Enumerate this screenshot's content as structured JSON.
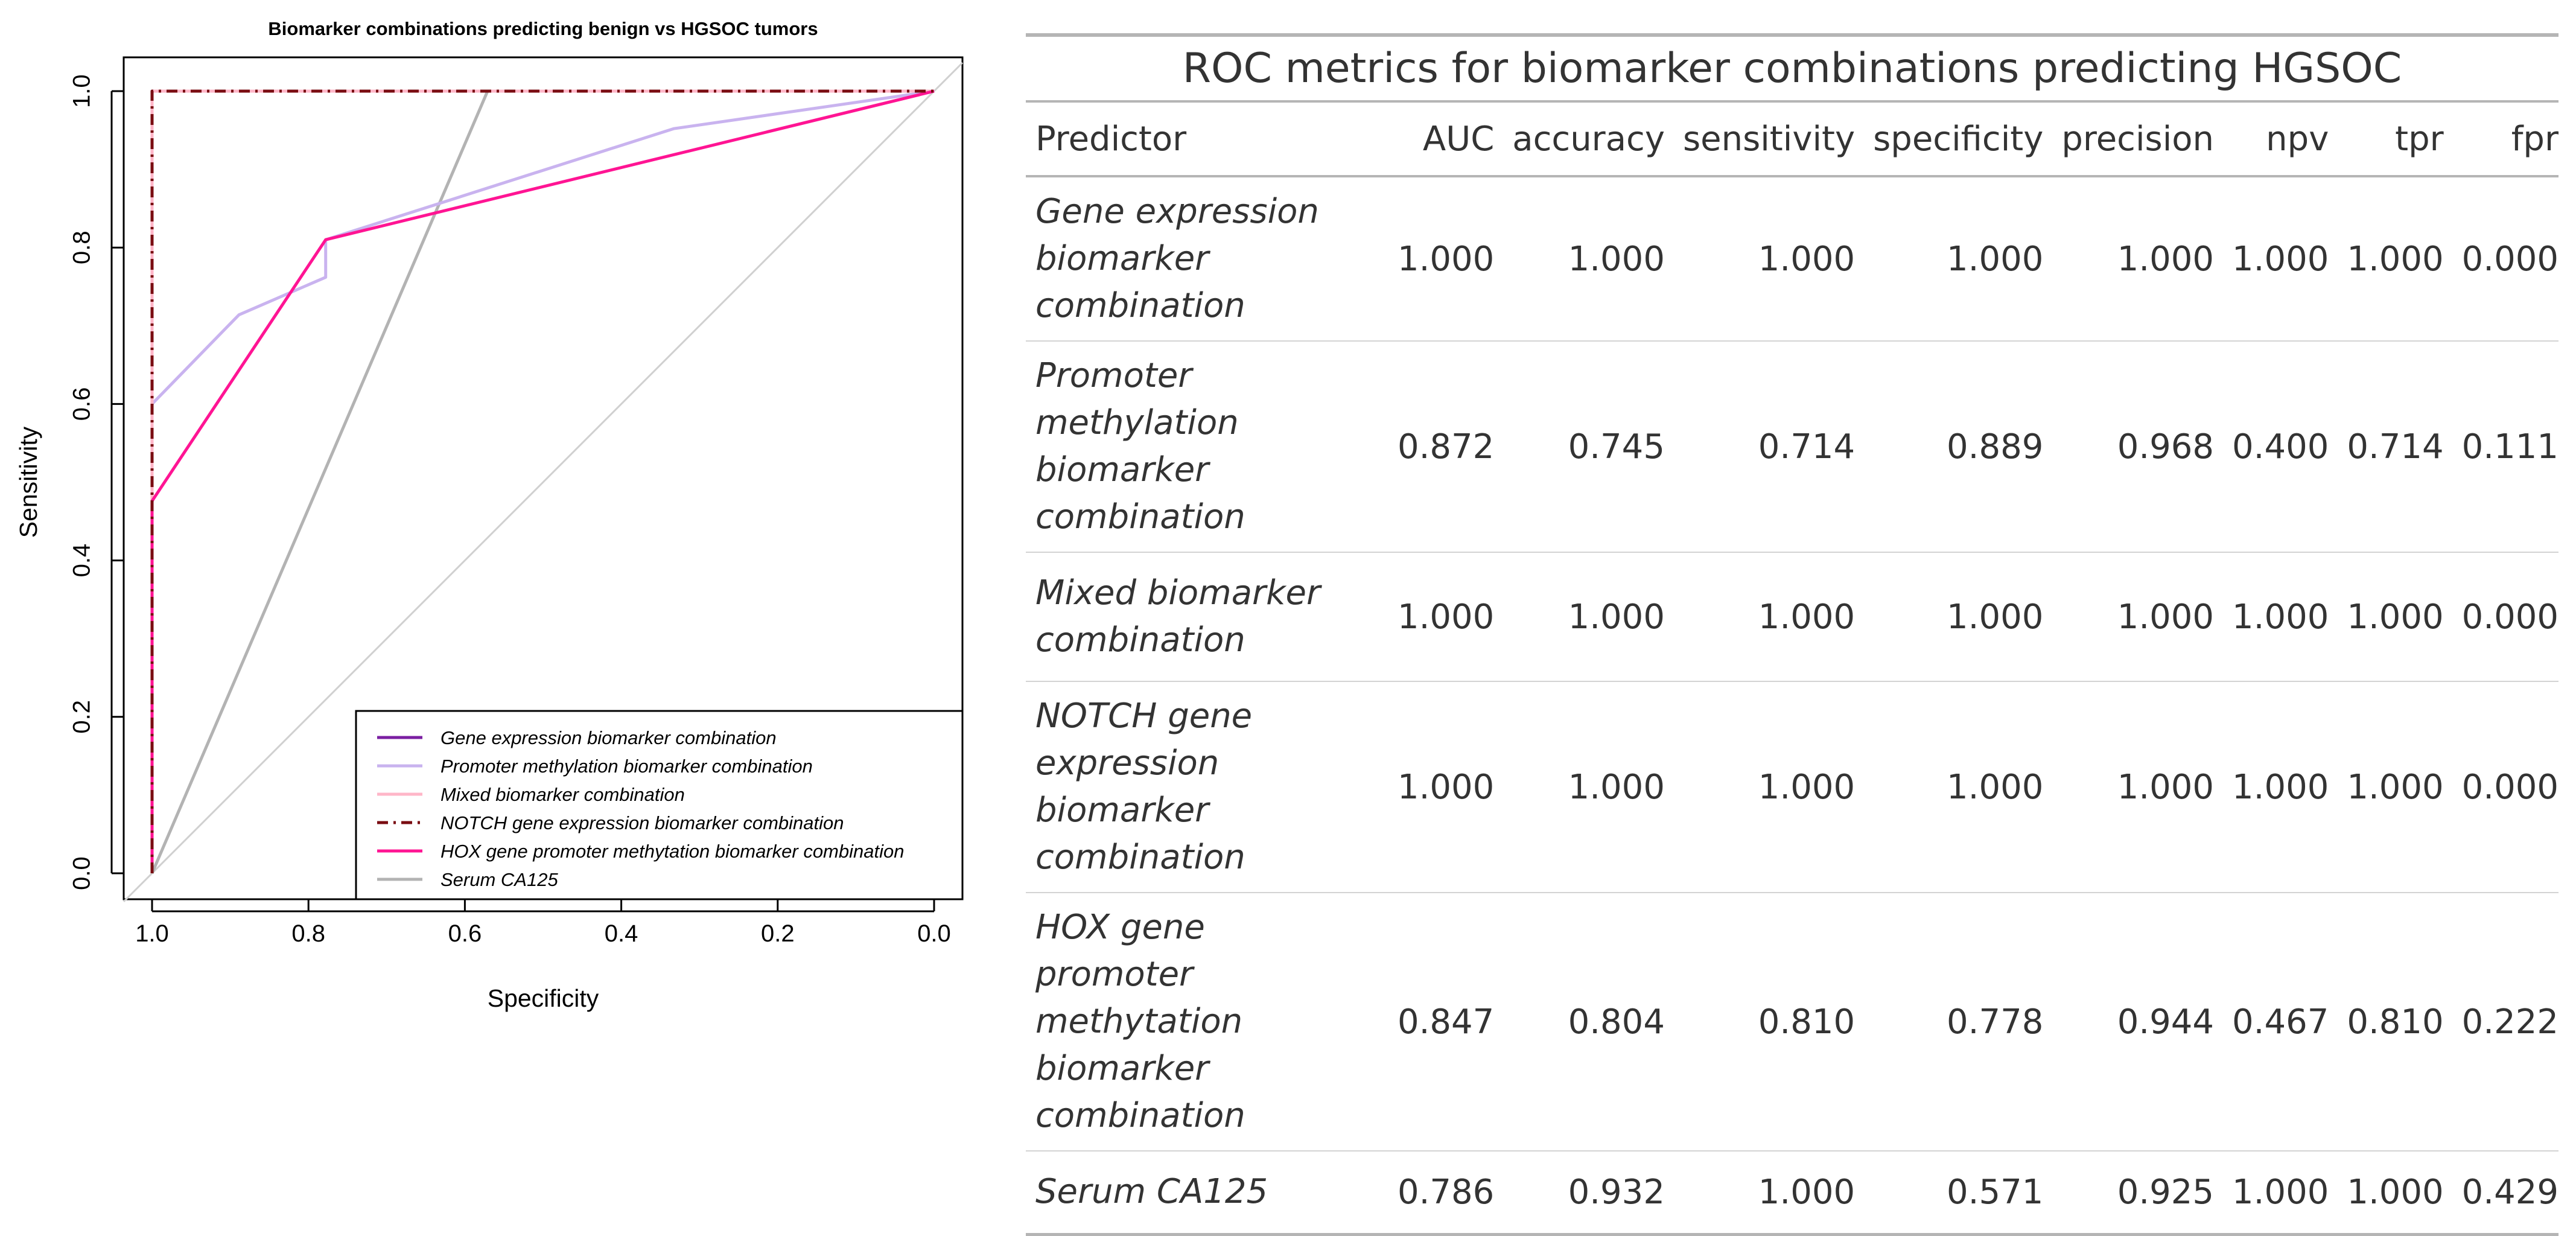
{
  "chart_data": {
    "type": "line",
    "title": "Biomarker combinations predicting benign vs HGSOC tumors",
    "xlabel": "Specificity",
    "ylabel": "Sensitivity",
    "xlim": [
      1.0,
      0.0
    ],
    "ylim": [
      0.0,
      1.0
    ],
    "x_direction": "reversed",
    "xticks": [
      "1.0",
      "0.8",
      "0.6",
      "0.4",
      "0.2",
      "0.0"
    ],
    "yticks": [
      "0.0",
      "0.2",
      "0.4",
      "0.6",
      "0.8",
      "1.0"
    ],
    "legend_position": "bottom-right",
    "series": [
      {
        "name": "Gene expression biomarker combination",
        "color": "#7b1fa2",
        "dash": "solid",
        "specificity": [
          1.0,
          1.0,
          1.0,
          0.0
        ],
        "sensitivity": [
          0.0,
          1.0,
          1.0,
          1.0
        ]
      },
      {
        "name": "Promoter methylation biomarker combination",
        "color": "#c9b3ef",
        "dash": "solid",
        "specificity": [
          1.0,
          1.0,
          0.889,
          0.778,
          0.778,
          0.333,
          0.0
        ],
        "sensitivity": [
          0.0,
          0.6,
          0.714,
          0.762,
          0.81,
          0.952,
          1.0
        ]
      },
      {
        "name": "Mixed biomarker combination",
        "color": "#ffb6c8",
        "dash": "solid",
        "specificity": [
          1.0,
          1.0,
          1.0,
          0.0
        ],
        "sensitivity": [
          0.0,
          1.0,
          1.0,
          1.0
        ]
      },
      {
        "name": "NOTCH gene expression biomarker combination",
        "color": "#7a0c12",
        "dash": "dashdot",
        "specificity": [
          1.0,
          1.0,
          1.0,
          0.0
        ],
        "sensitivity": [
          0.0,
          1.0,
          1.0,
          1.0
        ]
      },
      {
        "name": "HOX gene promoter methytation biomarker combination",
        "color": "#ff1493",
        "dash": "solid",
        "specificity": [
          1.0,
          1.0,
          0.778,
          0.0
        ],
        "sensitivity": [
          0.0,
          0.476,
          0.81,
          1.0
        ]
      },
      {
        "name": "Serum CA125",
        "color": "#b3b3b3",
        "dash": "solid",
        "specificity": [
          1.0,
          0.571,
          0.0
        ],
        "sensitivity": [
          0.0,
          1.0,
          1.0
        ]
      }
    ],
    "reference_line": {
      "color": "#d0d0d0",
      "from": [
        1.0,
        0.0
      ],
      "to": [
        0.0,
        1.0
      ]
    }
  },
  "table": {
    "title": "ROC metrics for biomarker combinations predicting HGSOC",
    "columns": [
      "Predictor",
      "AUC",
      "accuracy",
      "sensitivity",
      "specificity",
      "precision",
      "npv",
      "tpr",
      "fpr"
    ],
    "rows": [
      {
        "predictor": "Gene expression biomarker combination",
        "values": [
          "1.000",
          "1.000",
          "1.000",
          "1.000",
          "1.000",
          "1.000",
          "1.000",
          "0.000"
        ]
      },
      {
        "predictor": "Promoter methylation biomarker combination",
        "values": [
          "0.872",
          "0.745",
          "0.714",
          "0.889",
          "0.968",
          "0.400",
          "0.714",
          "0.111"
        ]
      },
      {
        "predictor": "Mixed biomarker combination",
        "values": [
          "1.000",
          "1.000",
          "1.000",
          "1.000",
          "1.000",
          "1.000",
          "1.000",
          "0.000"
        ]
      },
      {
        "predictor": "NOTCH gene expression biomarker combination",
        "values": [
          "1.000",
          "1.000",
          "1.000",
          "1.000",
          "1.000",
          "1.000",
          "1.000",
          "0.000"
        ]
      },
      {
        "predictor": "HOX gene promoter methytation biomarker combination",
        "values": [
          "0.847",
          "0.804",
          "0.810",
          "0.778",
          "0.944",
          "0.467",
          "0.810",
          "0.222"
        ]
      },
      {
        "predictor": "Serum CA125",
        "values": [
          "0.786",
          "0.932",
          "1.000",
          "0.571",
          "0.925",
          "1.000",
          "1.000",
          "0.429"
        ]
      }
    ]
  }
}
